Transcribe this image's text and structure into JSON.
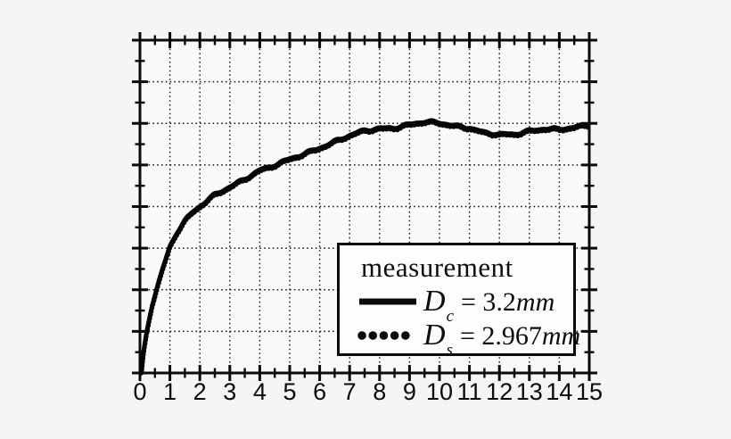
{
  "figure": {
    "background_color": "#f5f5f4",
    "plot_background_color": "#fafaf9",
    "axis_color": "#0a0a0a",
    "curve_color": "#060606",
    "grid_style": "dotted"
  },
  "legend": {
    "title": "measurement",
    "entries": [
      {
        "line_style": "solid",
        "symbol": "D",
        "subscript": "c",
        "value": "= 3.2",
        "unit": "mm"
      },
      {
        "line_style": "dotted",
        "symbol": "D",
        "subscript": "s",
        "value": "= 2.967",
        "unit": "mm"
      }
    ]
  },
  "chart_data": {
    "type": "line",
    "title": "",
    "xlabel": "",
    "ylabel": "",
    "xlim": [
      0,
      15
    ],
    "x_major_step": 1,
    "x_minor_step": 0.5,
    "x_tick_labels": [
      "0",
      "1",
      "2",
      "3",
      "4",
      "5",
      "6",
      "7",
      "8",
      "9",
      "10",
      "11",
      "12",
      "13",
      "14",
      "15"
    ],
    "y_tick_labels": [],
    "y_axis_labeled": false,
    "y_divisions": 8,
    "y_minor_per_major": 2,
    "grid": "dotted vertical line at each integer x (1-14), dotted horizontal line at each major y division (1-7)",
    "legend_position": "lower right inside plot",
    "note": "Both measured curves overlap almost exactly; y axis has tick marks but no numeric labels. Curve y-values below are in axis divisions (0 = bottom axis, 8 = top axis).",
    "x": [
      0.05,
      0.1,
      0.2,
      0.3,
      0.4,
      0.5,
      0.75,
      1.0,
      1.25,
      1.5,
      1.75,
      2.0,
      2.5,
      3.0,
      3.5,
      4.0,
      4.3,
      4.6,
      5.0,
      5.5,
      6.0,
      6.5,
      7.0,
      7.5,
      8.0,
      8.5,
      9.0,
      9.5,
      10.0,
      10.5,
      11.0,
      11.5,
      12.0,
      12.5,
      13.0,
      13.5,
      14.0,
      14.5,
      15.0
    ],
    "series": [
      {
        "name": "Dc = 3.2mm",
        "style": "solid",
        "y_divisions": [
          0.0,
          0.4,
          0.9,
          1.3,
          1.65,
          1.9,
          2.5,
          3.05,
          3.4,
          3.65,
          3.85,
          4.0,
          4.3,
          4.5,
          4.68,
          4.87,
          4.93,
          5.02,
          5.15,
          5.3,
          5.43,
          5.56,
          5.7,
          5.83,
          5.9,
          5.92,
          5.98,
          6.03,
          6.01,
          5.96,
          5.92,
          5.79,
          5.73,
          5.73,
          5.83,
          5.9,
          5.88,
          5.9,
          5.96
        ]
      },
      {
        "name": "Ds = 2.967mm",
        "style": "dotted",
        "y_divisions": [
          0.0,
          0.4,
          0.9,
          1.3,
          1.65,
          1.9,
          2.5,
          3.05,
          3.4,
          3.65,
          3.85,
          4.0,
          4.3,
          4.5,
          4.68,
          4.87,
          4.93,
          5.02,
          5.15,
          5.3,
          5.43,
          5.56,
          5.7,
          5.83,
          5.9,
          5.92,
          5.98,
          6.03,
          6.01,
          5.96,
          5.92,
          5.79,
          5.73,
          5.73,
          5.83,
          5.9,
          5.88,
          5.9,
          5.96
        ]
      }
    ]
  }
}
